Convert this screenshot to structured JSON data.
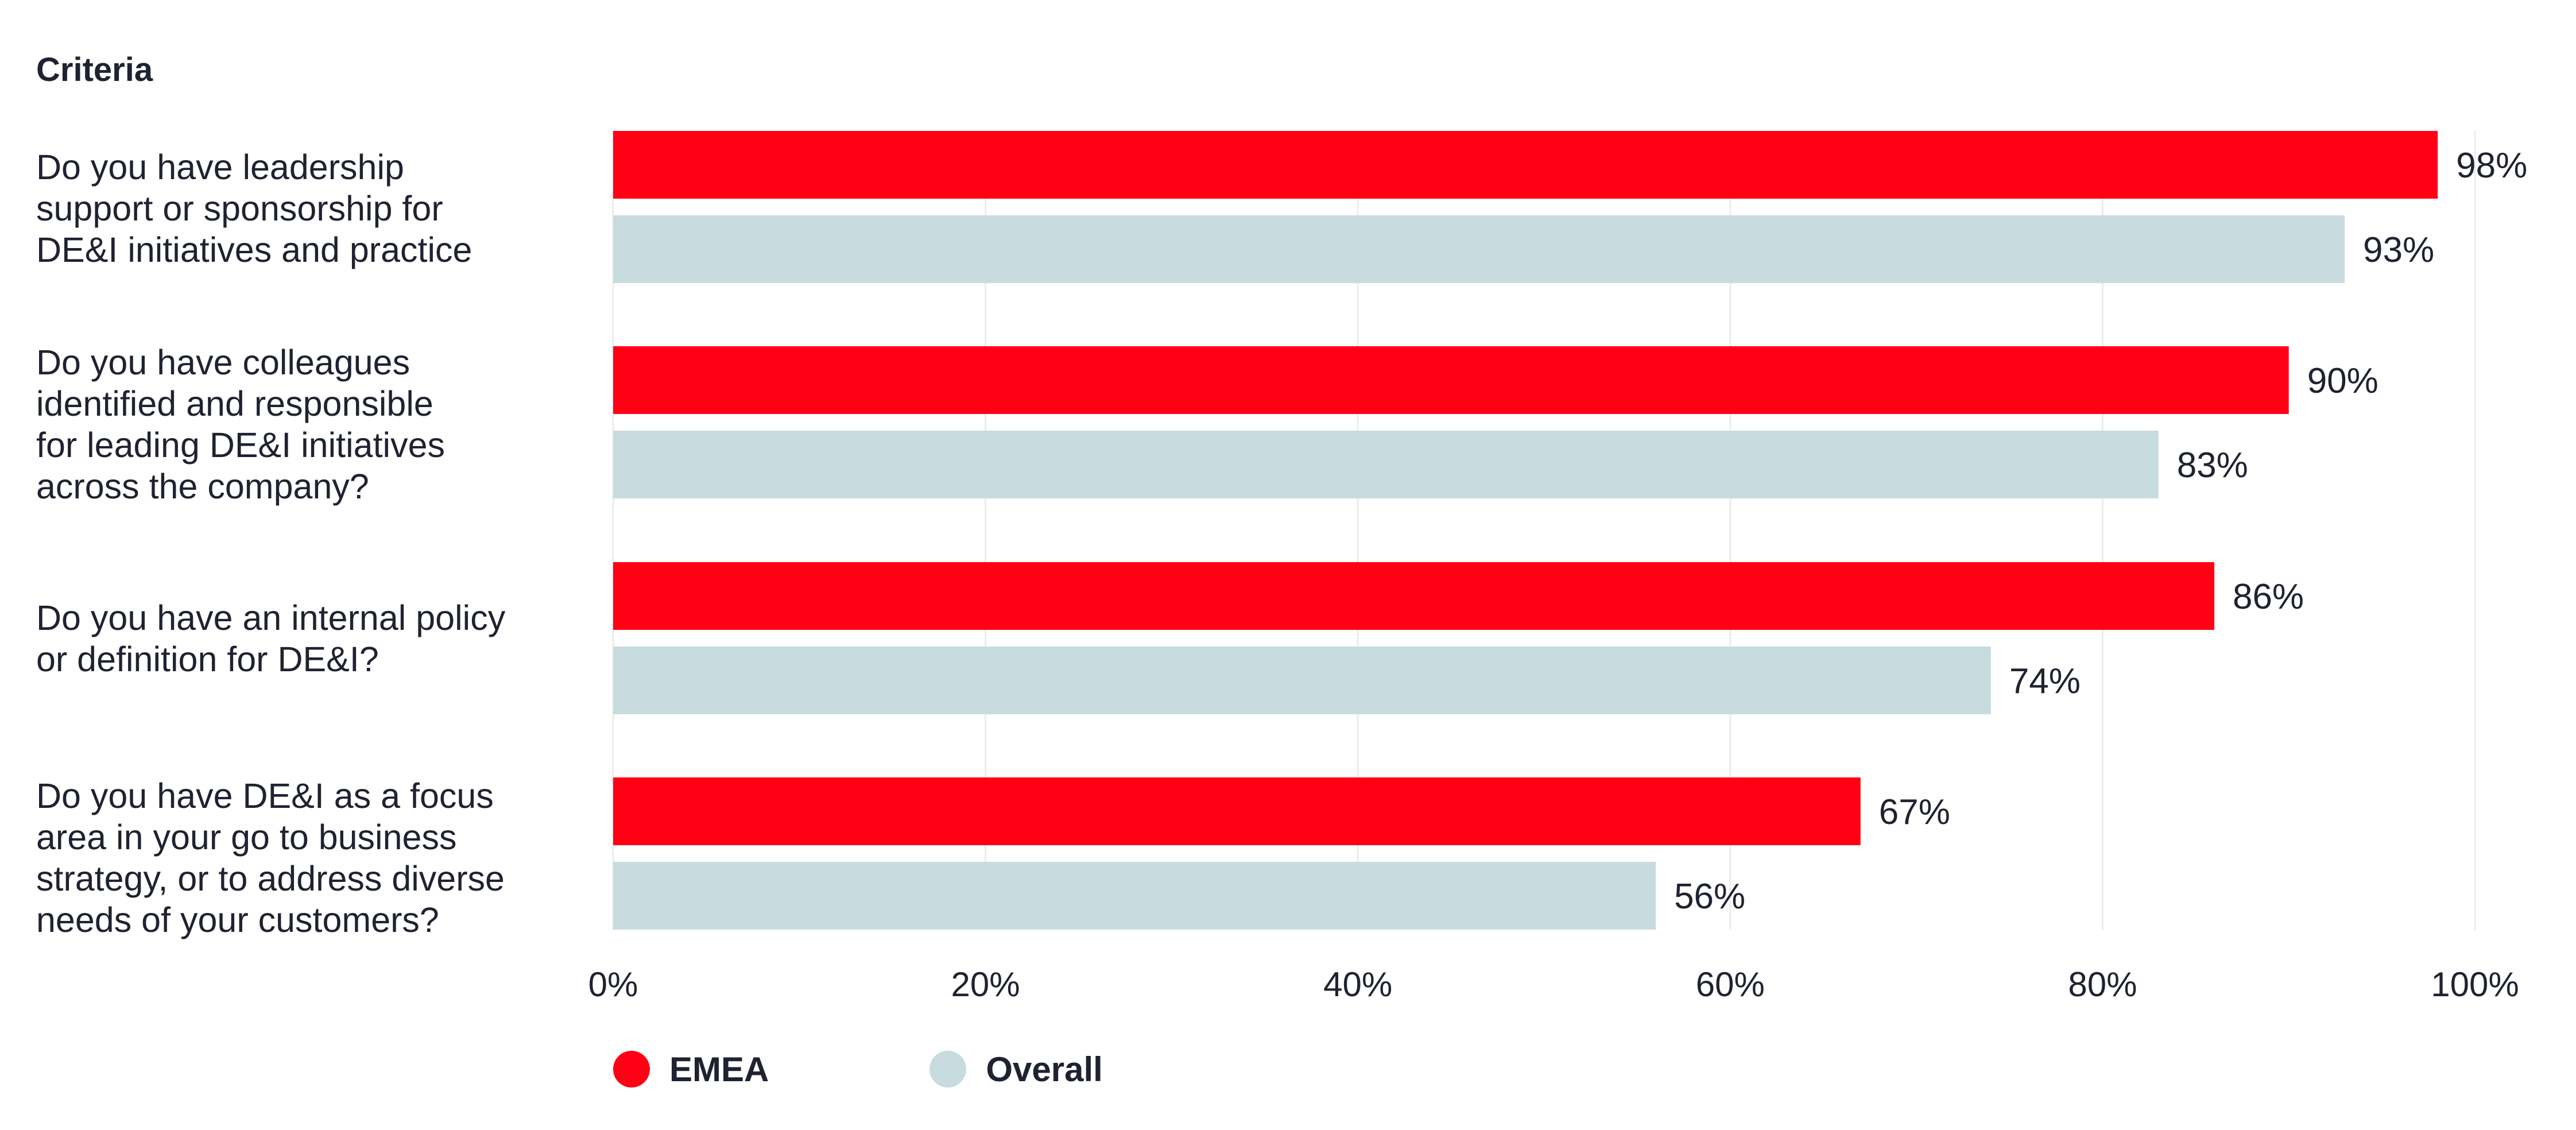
{
  "chart_data": {
    "type": "bar",
    "orientation": "horizontal",
    "header": "Criteria",
    "categories": [
      "Do you have leadership\nsupport or sponsorship for\nDE&I initiatives and practice",
      "Do you have colleagues\nidentified and responsible\nfor leading DE&I initiatives\nacross the company?",
      "Do you have an internal policy\nor definition for DE&I?",
      "Do you have DE&I as a focus\narea in your go to business\nstrategy, or to address diverse\nneeds of your customers?"
    ],
    "series": [
      {
        "name": "EMEA",
        "color": "#ff0015",
        "values": [
          98,
          90,
          86,
          67
        ]
      },
      {
        "name": "Overall",
        "color": "#c8dbdf",
        "values": [
          93,
          83,
          74,
          56
        ]
      }
    ],
    "value_suffix": "%",
    "xlim": [
      0,
      100
    ],
    "x_ticks": [
      "0%",
      "20%",
      "40%",
      "60%",
      "80%",
      "100%"
    ],
    "grid": "vertical",
    "legend": "bottom-left"
  }
}
